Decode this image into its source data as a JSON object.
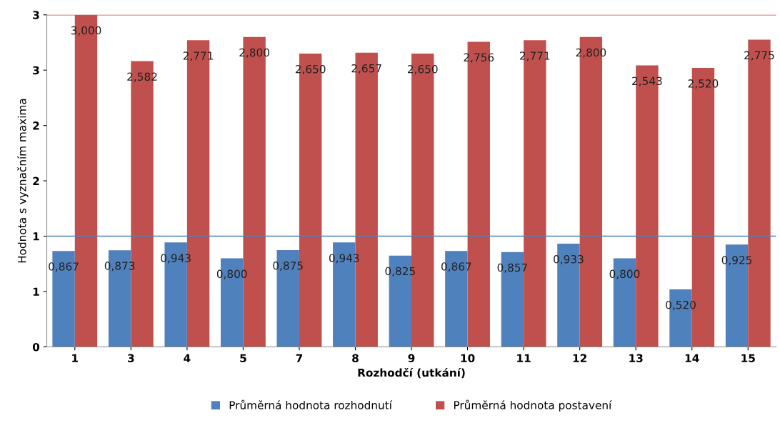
{
  "chart_data": {
    "type": "bar",
    "xlabel": "Rozhodčí (utkání)",
    "ylabel": "Hodnota s vyznačním maxima",
    "categories": [
      "1",
      "3",
      "4",
      "5",
      "7",
      "8",
      "9",
      "10",
      "11",
      "12",
      "13",
      "14",
      "15"
    ],
    "series": [
      {
        "name": "Průměrná hodnota rozhodnutí",
        "color": "#4f81bd",
        "values": [
          0.867,
          0.873,
          0.943,
          0.8,
          0.875,
          0.943,
          0.825,
          0.867,
          0.857,
          0.933,
          0.8,
          0.52,
          0.925
        ],
        "value_labels": [
          "0,867",
          "0,873",
          "0,943",
          "0,800",
          "0,875",
          "0,943",
          "0,825",
          "0,867",
          "0,857",
          "0,933",
          "0,800",
          "0,520",
          "0,925"
        ]
      },
      {
        "name": "Průměrná hodnota postavení",
        "color": "#c0504d",
        "values": [
          3.0,
          2.582,
          2.771,
          2.8,
          2.65,
          2.657,
          2.65,
          2.756,
          2.771,
          2.8,
          2.543,
          2.52,
          2.775
        ],
        "value_labels": [
          "3,000",
          "2,582",
          "2,771",
          "2,800",
          "2,650",
          "2,657",
          "2,650",
          "2,756",
          "2,771",
          "2,800",
          "2,543",
          "2,520",
          "2,775"
        ]
      }
    ],
    "ylim": [
      0,
      3
    ],
    "yticks": [
      0,
      {
        "value": 0.5,
        "label": "1"
      },
      1,
      {
        "value": 1.5,
        "label": "2"
      },
      2,
      {
        "value": 2.5,
        "label": "3"
      },
      3
    ],
    "ref_lines": [
      {
        "axis": "y",
        "value": 3,
        "color": "#c0504d"
      },
      {
        "axis": "y",
        "value": 1,
        "color": "#4f81bd"
      }
    ],
    "legend": "bottom",
    "grid": false
  }
}
